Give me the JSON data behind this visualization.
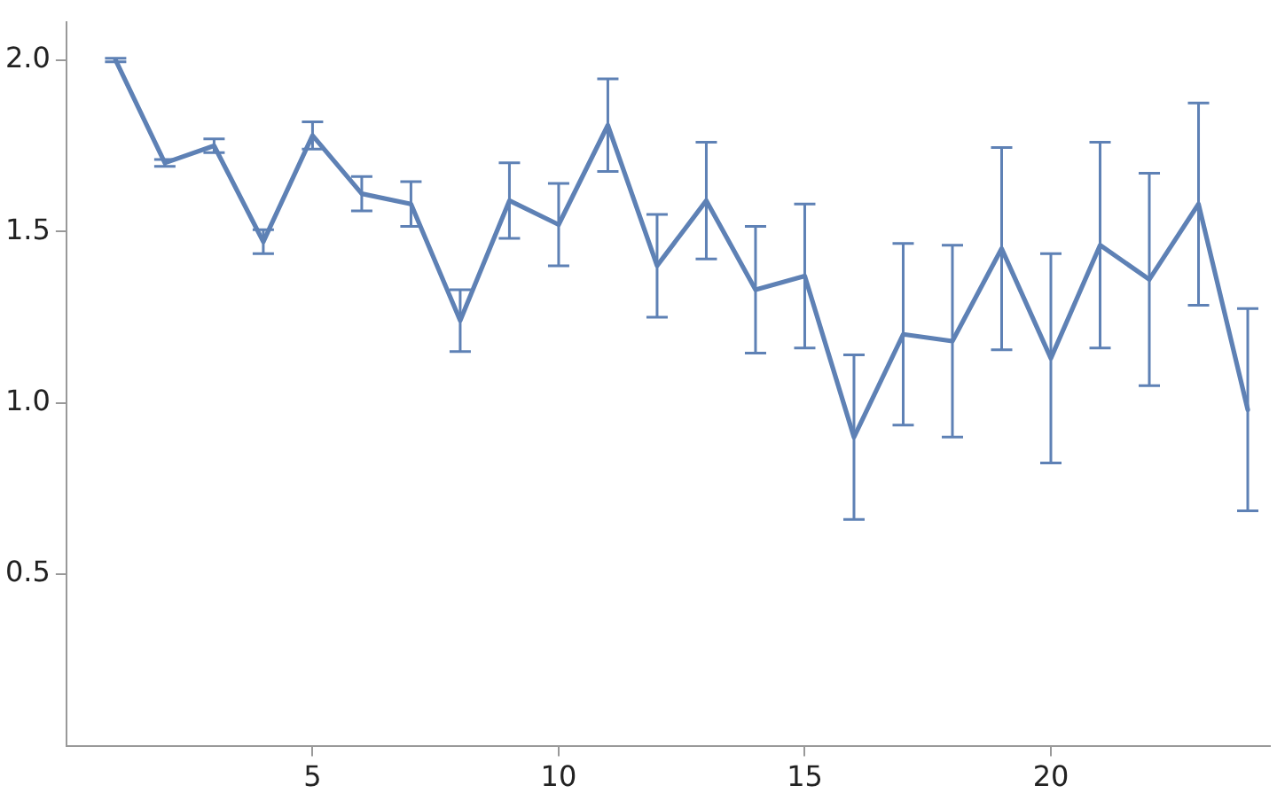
{
  "chart_data": {
    "type": "line",
    "x": [
      1,
      2,
      3,
      4,
      5,
      6,
      7,
      8,
      9,
      10,
      11,
      12,
      13,
      14,
      15,
      16,
      17,
      18,
      19,
      20,
      21,
      22,
      23,
      24
    ],
    "series": [
      {
        "color": "#5e81b5",
        "values": [
          2.0,
          1.7,
          1.75,
          1.47,
          1.78,
          1.61,
          1.58,
          1.24,
          1.59,
          1.52,
          1.81,
          1.4,
          1.59,
          1.33,
          1.37,
          0.9,
          1.2,
          1.18,
          1.45,
          1.13,
          1.46,
          1.36,
          1.58,
          0.98
        ],
        "errors": [
          0.005,
          0.01,
          0.02,
          0.035,
          0.04,
          0.05,
          0.065,
          0.09,
          0.11,
          0.12,
          0.135,
          0.15,
          0.17,
          0.185,
          0.21,
          0.24,
          0.265,
          0.28,
          0.295,
          0.305,
          0.3,
          0.31,
          0.295,
          0.295
        ]
      }
    ],
    "xlim": [
      0,
      24.45
    ],
    "ylim": [
      0,
      2.11
    ],
    "xticks": [
      5,
      10,
      15,
      20
    ],
    "yticks": [
      {
        "value": 0.5,
        "label": "0.5"
      },
      {
        "value": 1,
        "label": "1.0"
      },
      {
        "value": 1.5,
        "label": "1.5"
      },
      {
        "value": 2,
        "label": "2.0"
      }
    ],
    "grid": false,
    "legend": false,
    "marker": "none",
    "line_style": "solid"
  }
}
